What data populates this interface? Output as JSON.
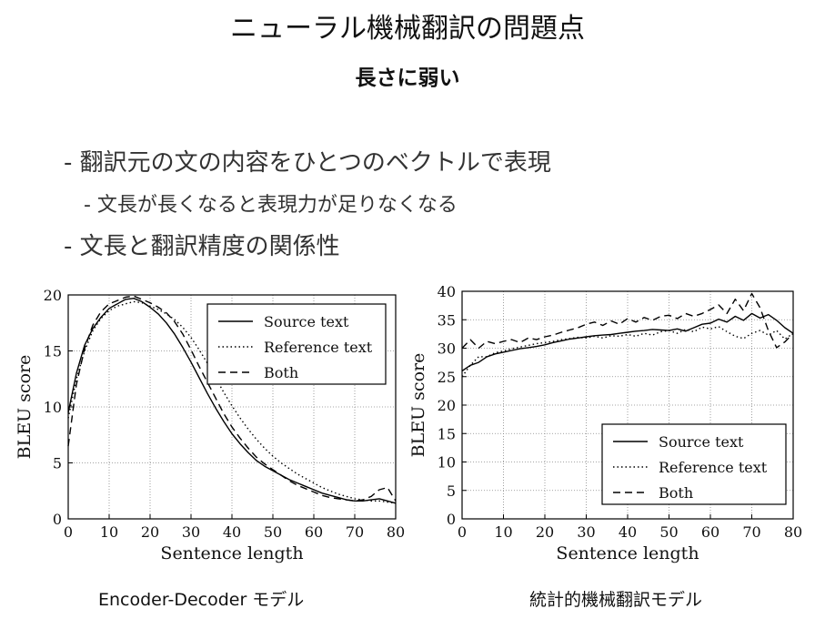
{
  "title": "ニューラル機械翻訳の問題点",
  "subtitle": "長さに弱い",
  "bullets": [
    "- 翻訳元の文の内容をひとつのベクトルで表現",
    "- 文長が長くなると表現力が足りなくなる",
    "- 文長と翻訳精度の関係性"
  ],
  "captions": {
    "left": "Encoder-Decoder モデル",
    "right": "統計的機械翻訳モデル"
  },
  "chart_data": [
    {
      "type": "line",
      "title": "",
      "xlabel": "Sentence length",
      "ylabel": "BLEU score",
      "xlim": [
        0,
        80
      ],
      "ylim": [
        0,
        20
      ],
      "xticks": [
        "0",
        "10",
        "20",
        "30",
        "40",
        "50",
        "60",
        "70",
        "80"
      ],
      "yticks": [
        "0",
        "5",
        "10",
        "15",
        "20"
      ],
      "grid": true,
      "legend_position": "top-right",
      "series": [
        {
          "name": "Source text",
          "style": "solid",
          "x": [
            0,
            2,
            4,
            6,
            8,
            10,
            12,
            14,
            16,
            18,
            20,
            22,
            24,
            26,
            28,
            30,
            32,
            34,
            36,
            38,
            40,
            42,
            44,
            46,
            48,
            50,
            52,
            54,
            56,
            58,
            60,
            62,
            64,
            66,
            68,
            70,
            72,
            74,
            76,
            78,
            80
          ],
          "y": [
            9.5,
            13,
            15.5,
            17,
            18,
            18.8,
            19.2,
            19.6,
            19.7,
            19.4,
            18.9,
            18.3,
            17.5,
            16.5,
            15.3,
            14,
            12.6,
            11.2,
            9.9,
            8.7,
            7.6,
            6.7,
            5.9,
            5.2,
            4.7,
            4.3,
            3.9,
            3.5,
            3.2,
            2.9,
            2.6,
            2.3,
            2.1,
            1.9,
            1.7,
            1.6,
            1.6,
            1.7,
            1.8,
            1.6,
            1.4
          ]
        },
        {
          "name": "Reference text",
          "style": "dotted",
          "x": [
            0,
            2,
            4,
            6,
            8,
            10,
            12,
            14,
            16,
            18,
            20,
            22,
            24,
            26,
            28,
            30,
            32,
            34,
            36,
            38,
            40,
            42,
            44,
            46,
            48,
            50,
            52,
            54,
            56,
            58,
            60,
            62,
            64,
            66,
            68,
            70,
            72,
            74,
            76,
            78,
            80
          ],
          "y": [
            9,
            12.5,
            15,
            16.8,
            17.9,
            18.6,
            19,
            19.2,
            19.4,
            19.3,
            19,
            18.7,
            18.3,
            17.8,
            17.1,
            16.2,
            15.1,
            13.9,
            12.6,
            11.3,
            10.1,
            9,
            8,
            7.1,
            6.3,
            5.6,
            5,
            4.5,
            4,
            3.6,
            3.2,
            2.8,
            2.5,
            2.2,
            2,
            1.8,
            1.7,
            1.6,
            1.6,
            1.5,
            1.4
          ]
        },
        {
          "name": "Both",
          "style": "dashed",
          "x": [
            0,
            2,
            4,
            6,
            8,
            10,
            12,
            14,
            16,
            18,
            20,
            22,
            24,
            26,
            28,
            30,
            32,
            34,
            36,
            38,
            40,
            42,
            44,
            46,
            48,
            50,
            52,
            54,
            56,
            58,
            60,
            62,
            64,
            66,
            68,
            70,
            72,
            74,
            76,
            78,
            80
          ],
          "y": [
            6.5,
            12,
            15.2,
            17.3,
            18.5,
            19.2,
            19.5,
            19.8,
            19.9,
            19.6,
            19.3,
            18.9,
            18.4,
            17.6,
            16.5,
            15.1,
            13.6,
            12.2,
            10.8,
            9.4,
            8.2,
            7.2,
            6.3,
            5.5,
            4.9,
            4.4,
            3.9,
            3.4,
            3,
            2.7,
            2.4,
            2.1,
            1.9,
            1.8,
            1.7,
            1.6,
            1.7,
            2,
            2.6,
            2.8,
            1.6
          ]
        }
      ]
    },
    {
      "type": "line",
      "title": "",
      "xlabel": "Sentence length",
      "ylabel": "BLEU score",
      "xlim": [
        0,
        80
      ],
      "ylim": [
        0,
        40
      ],
      "xticks": [
        "0",
        "10",
        "20",
        "30",
        "40",
        "50",
        "60",
        "70",
        "80"
      ],
      "yticks": [
        "0",
        "5",
        "10",
        "15",
        "20",
        "25",
        "30",
        "35",
        "40"
      ],
      "grid": true,
      "legend_position": "bottom-right",
      "series": [
        {
          "name": "Source text",
          "style": "solid",
          "x": [
            0,
            2,
            4,
            6,
            8,
            10,
            12,
            14,
            16,
            18,
            20,
            22,
            24,
            26,
            28,
            30,
            32,
            34,
            36,
            38,
            40,
            42,
            44,
            46,
            48,
            50,
            52,
            54,
            56,
            58,
            60,
            62,
            64,
            66,
            68,
            70,
            72,
            74,
            76,
            78,
            80
          ],
          "y": [
            26,
            27,
            27.5,
            28.5,
            29,
            29.3,
            29.6,
            29.9,
            30.1,
            30.3,
            30.6,
            31,
            31.3,
            31.6,
            31.8,
            32,
            32.2,
            32.3,
            32.4,
            32.6,
            32.8,
            33,
            33.1,
            33.3,
            33.2,
            33.1,
            33.4,
            33,
            33.6,
            34.2,
            34.4,
            35.1,
            34.6,
            35.6,
            34.9,
            36.1,
            35.3,
            35.9,
            34.9,
            33.6,
            32.6
          ]
        },
        {
          "name": "Reference text",
          "style": "dotted",
          "x": [
            0,
            2,
            4,
            6,
            8,
            10,
            12,
            14,
            16,
            18,
            20,
            22,
            24,
            26,
            28,
            30,
            32,
            34,
            36,
            38,
            40,
            42,
            44,
            46,
            48,
            50,
            52,
            54,
            56,
            58,
            60,
            62,
            64,
            66,
            68,
            70,
            72,
            74,
            76,
            78,
            80
          ],
          "y": [
            25,
            27,
            28.5,
            28.5,
            29.2,
            29.5,
            29.9,
            30.2,
            30.5,
            30.8,
            31,
            31.2,
            31.5,
            31.7,
            31.9,
            31.8,
            32.1,
            31.8,
            32.2,
            32.1,
            32.4,
            32.1,
            32.6,
            32.3,
            32.9,
            33.1,
            32.6,
            33.3,
            32.9,
            33.7,
            33.4,
            33.8,
            32.9,
            32.1,
            31.7,
            32.6,
            33.1,
            32.3,
            33.1,
            31.6,
            32.6
          ]
        },
        {
          "name": "Both",
          "style": "dashed",
          "x": [
            0,
            2,
            4,
            6,
            8,
            10,
            12,
            14,
            16,
            18,
            20,
            22,
            24,
            26,
            28,
            30,
            32,
            34,
            36,
            38,
            40,
            42,
            44,
            46,
            48,
            50,
            52,
            54,
            56,
            58,
            60,
            62,
            64,
            66,
            68,
            70,
            72,
            74,
            76,
            78,
            80
          ],
          "y": [
            30,
            31.5,
            30,
            31.2,
            30.8,
            31.2,
            31.5,
            31,
            31.8,
            31.5,
            32,
            32.3,
            32.8,
            33.2,
            33.6,
            34.2,
            34.6,
            34,
            34.8,
            34.2,
            35.2,
            34.6,
            35.4,
            34.9,
            35.6,
            35.8,
            35.2,
            36.1,
            35.6,
            36.1,
            36.8,
            37.6,
            36.1,
            38.6,
            36.6,
            39.6,
            37.1,
            33.1,
            30.1,
            31.1,
            32.6
          ]
        }
      ]
    }
  ]
}
